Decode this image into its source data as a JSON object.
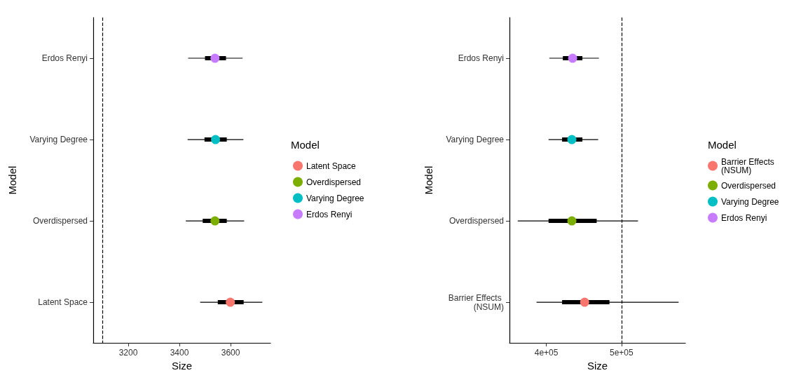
{
  "chart_data": [
    {
      "type": "scatter",
      "orientation": "horizontal",
      "xlabel": "Size",
      "ylabel": "Model",
      "legend_title": "Model",
      "legend": "right",
      "grid": false,
      "marker": "circle",
      "categories": [
        "Erdos Renyi",
        "Varying Degree",
        "Overdispersed",
        "Latent Space"
      ],
      "xlim": [
        3063,
        3756
      ],
      "xticks": [
        3200,
        3400,
        3600
      ],
      "ref_lines": [
        {
          "axis": "x",
          "value": 3100,
          "line_style": "dashed",
          "color": "#000000"
        }
      ],
      "series": [
        {
          "name": "Latent Space",
          "color": "#f8766d",
          "values": [
            null,
            null,
            null,
            3599
          ],
          "errors": [
            null,
            null,
            null,
            [
              3481,
              3724
            ]
          ]
        },
        {
          "name": "Overdispersed",
          "color": "#7cae00",
          "values": [
            null,
            null,
            3539,
            null
          ],
          "errors": [
            null,
            null,
            [
              3425,
              3653
            ],
            null
          ]
        },
        {
          "name": "Varying Degree",
          "color": "#00bfc4",
          "values": [
            null,
            3541,
            null,
            null
          ],
          "errors": [
            null,
            [
              3432,
              3650
            ],
            null,
            null
          ]
        },
        {
          "name": "Erdos Renyi",
          "color": "#c77cff",
          "values": [
            3539,
            null,
            null,
            null
          ],
          "errors": [
            [
              3434,
              3647
            ],
            null,
            null,
            null
          ]
        },
        {
          "type": "bar",
          "color": "#000000",
          "base": [
            3500,
            3498,
            3491,
            3550
          ],
          "values": [
            82,
            87,
            94,
            101
          ]
        }
      ]
    },
    {
      "type": "scatter",
      "orientation": "horizontal",
      "xlabel": "Size",
      "ylabel": "Model",
      "legend_title": "Model",
      "legend": "right",
      "grid": false,
      "marker": "circle",
      "categories": [
        "Erdos Renyi",
        "Varying Degree",
        "Overdispersed",
        "Barrier Effects (NSUM)"
      ],
      "xlim": [
        351000,
        585000
      ],
      "xticks": [
        {
          "value": 400000,
          "label": "4e+05"
        },
        {
          "value": 500000,
          "label": "5e+05"
        }
      ],
      "ref_lines": [
        {
          "axis": "x",
          "value": 500000,
          "line_style": "dashed",
          "color": "#000000"
        }
      ],
      "series": [
        {
          "name": "Barrier Effects (NSUM)",
          "color": "#f8766d",
          "values": [
            null,
            null,
            null,
            451000
          ],
          "errors": [
            null,
            null,
            null,
            [
              387000,
              576000
            ]
          ]
        },
        {
          "name": "Overdispersed",
          "color": "#7cae00",
          "values": [
            null,
            null,
            434000,
            null
          ],
          "errors": [
            null,
            null,
            [
              362000,
              522000
            ],
            null
          ]
        },
        {
          "name": "Varying Degree",
          "color": "#00bfc4",
          "values": [
            null,
            434000,
            null,
            null
          ],
          "errors": [
            null,
            [
              403000,
              469000
            ],
            null,
            null
          ]
        },
        {
          "name": "Erdos Renyi",
          "color": "#c77cff",
          "values": [
            435000,
            null,
            null,
            null
          ],
          "errors": [
            [
              404000,
              470000
            ],
            null,
            null,
            null
          ]
        },
        {
          "type": "bar",
          "color": "#000000",
          "base": [
            422000,
            421000,
            403000,
            421000
          ],
          "values": [
            26000,
            27000,
            64000,
            63000
          ]
        }
      ]
    }
  ]
}
